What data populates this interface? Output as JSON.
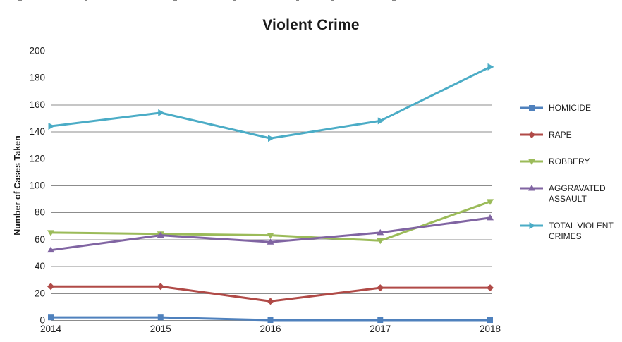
{
  "figure": {
    "title": "Violent Crime",
    "ylabel": "Number of Cases Taken"
  },
  "chart_data": {
    "type": "line",
    "title": "Violent Crime",
    "xlabel": "",
    "ylabel": "Number of Cases Taken",
    "categories": [
      "2014",
      "2015",
      "2016",
      "2017",
      "2018"
    ],
    "ylim": [
      0,
      200
    ],
    "ytick_step": 20,
    "grid": true,
    "legend_position": "right",
    "series": [
      {
        "name": "HOMICIDE",
        "values": [
          2,
          2,
          0,
          0,
          0
        ],
        "color": "#4F81BD",
        "marker": "square"
      },
      {
        "name": "RAPE",
        "values": [
          25,
          25,
          14,
          24,
          24
        ],
        "color": "#B04A47",
        "marker": "diamond"
      },
      {
        "name": "ROBBERY",
        "values": [
          65,
          64,
          63,
          59,
          88
        ],
        "color": "#9BBB59",
        "marker": "triangle-down"
      },
      {
        "name": "AGGRAVATED ASSAULT",
        "values": [
          52,
          63,
          58,
          65,
          76
        ],
        "color": "#8064A2",
        "marker": "triangle-up"
      },
      {
        "name": "TOTAL VIOLENT CRIMES",
        "values": [
          144,
          154,
          135,
          148,
          188
        ],
        "color": "#4BACC6",
        "marker": "triangle-right"
      }
    ],
    "colors": {
      "gridline": "#8C8C8C",
      "axis": "#8C8C8C",
      "tick_text": "#1f1f1f",
      "background": "#ffffff"
    }
  }
}
